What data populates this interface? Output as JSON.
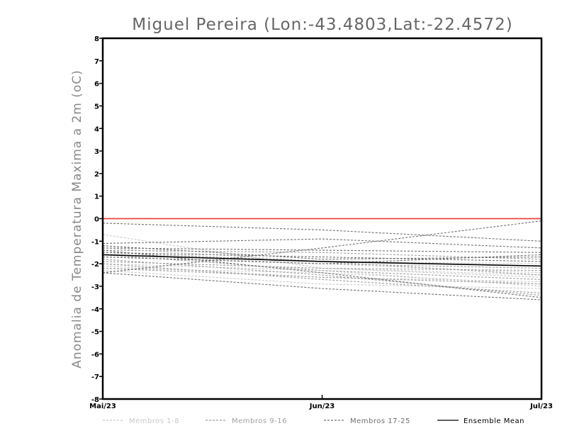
{
  "chart_data": {
    "type": "line",
    "title": "Miguel Pereira (Lon:-43.4803,Lat:-22.4572)",
    "ylabel": "Anomalia de Temperatura Maxima a 2m (oC)",
    "xlabel": "",
    "x": [
      "Mai/23",
      "Jun/23",
      "Jul/23"
    ],
    "ylim": [
      -8,
      8
    ],
    "yticks": [
      "8",
      "7",
      "6",
      "5",
      "4",
      "3",
      "2",
      "1",
      "0",
      "-1",
      "-2",
      "-3",
      "-4",
      "-5",
      "-6",
      "-7",
      "-8"
    ],
    "zero_line_color": "#e8453c",
    "legend": [
      {
        "label": "Membros 1-8",
        "color": "#c8c8c8",
        "dash": "dashed"
      },
      {
        "label": "Membros 9-16",
        "color": "#a0a0a0",
        "dash": "dashed"
      },
      {
        "label": "Membros 17-25",
        "color": "#707070",
        "dash": "dashed"
      },
      {
        "label": "Ensemble Mean",
        "color": "#000000",
        "dash": "solid"
      }
    ],
    "series": [
      {
        "group": 1,
        "values": [
          -0.7,
          -2.2,
          -2.6
        ]
      },
      {
        "group": 1,
        "values": [
          -1.9,
          -2.2,
          -2.5
        ]
      },
      {
        "group": 1,
        "values": [
          -2.1,
          -2.6,
          -2.8
        ]
      },
      {
        "group": 1,
        "values": [
          -2.2,
          -2.4,
          -2.9
        ]
      },
      {
        "group": 1,
        "values": [
          -1.3,
          -1.9,
          -2.0
        ]
      },
      {
        "group": 1,
        "values": [
          -2.0,
          -2.3,
          -3.0
        ]
      },
      {
        "group": 1,
        "values": [
          -1.6,
          -2.0,
          -2.4
        ]
      },
      {
        "group": 1,
        "values": [
          -2.3,
          -2.9,
          -3.1
        ]
      },
      {
        "group": 2,
        "values": [
          -1.6,
          -2.3,
          -2.7
        ]
      },
      {
        "group": 2,
        "values": [
          -1.7,
          -2.0,
          -2.2
        ]
      },
      {
        "group": 2,
        "values": [
          -1.8,
          -2.5,
          -3.4
        ]
      },
      {
        "group": 2,
        "values": [
          -1.9,
          -2.2,
          -2.3
        ]
      },
      {
        "group": 2,
        "values": [
          -1.5,
          -1.9,
          -2.5
        ]
      },
      {
        "group": 2,
        "values": [
          -2.0,
          -2.7,
          -3.3
        ]
      },
      {
        "group": 2,
        "values": [
          -1.4,
          -1.5,
          -1.8
        ]
      },
      {
        "group": 2,
        "values": [
          -2.2,
          -2.6,
          -2.9
        ]
      },
      {
        "group": 3,
        "values": [
          -0.2,
          -0.5,
          -1.0
        ]
      },
      {
        "group": 3,
        "values": [
          -2.4,
          -1.3,
          -0.1
        ]
      },
      {
        "group": 3,
        "values": [
          -1.1,
          -0.9,
          -1.3
        ]
      },
      {
        "group": 3,
        "values": [
          -1.3,
          -1.4,
          -1.5
        ]
      },
      {
        "group": 3,
        "values": [
          -2.4,
          -3.1,
          -3.6
        ]
      },
      {
        "group": 3,
        "values": [
          -1.4,
          -2.4,
          -3.5
        ]
      },
      {
        "group": 3,
        "values": [
          -1.2,
          -1.8,
          -1.7
        ]
      },
      {
        "group": 3,
        "values": [
          -1.5,
          -1.7,
          -1.9
        ]
      },
      {
        "group": 3,
        "values": [
          -1.7,
          -2.0,
          -1.6
        ]
      },
      {
        "group": 0,
        "values": [
          -1.6,
          -1.9,
          -2.1
        ]
      }
    ]
  }
}
